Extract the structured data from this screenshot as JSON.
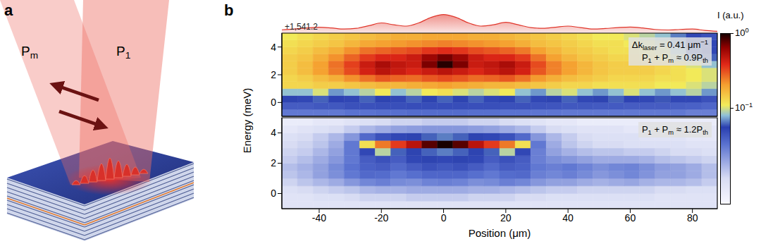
{
  "figure": {
    "panel_labels": [
      "a",
      "b"
    ],
    "beams": [
      [
        {
          "text": "P"
        },
        {
          "text": "m",
          "sub": true
        }
      ],
      [
        {
          "text": "P"
        },
        {
          "text": "1",
          "sub": true
        }
      ]
    ]
  },
  "chart_data": [
    {
      "type": "area",
      "annotation": "+1,541.2",
      "color": "#e0352a",
      "tick_labels": false,
      "xlim": [
        -52,
        88
      ],
      "ylim": [
        0,
        1.1
      ],
      "x": [
        -52,
        -48,
        -44,
        -40,
        -36,
        -32,
        -28,
        -24,
        -20,
        -16,
        -12,
        -8,
        -4,
        0,
        4,
        8,
        12,
        16,
        20,
        24,
        28,
        32,
        36,
        40,
        44,
        48,
        52,
        56,
        60,
        64,
        68,
        72,
        76,
        80,
        84,
        88
      ],
      "values": [
        0.18,
        0.22,
        0.28,
        0.32,
        0.28,
        0.22,
        0.26,
        0.4,
        0.55,
        0.45,
        0.38,
        0.55,
        0.85,
        1.0,
        0.85,
        0.55,
        0.38,
        0.45,
        0.58,
        0.45,
        0.3,
        0.26,
        0.32,
        0.38,
        0.3,
        0.22,
        0.25,
        0.3,
        0.33,
        0.28,
        0.2,
        0.17,
        0.2,
        0.22,
        0.15,
        0.1
      ]
    },
    {
      "type": "heatmap",
      "y_label": "Energy (meV)",
      "tick_labels": "y",
      "xlim": [
        -52,
        88
      ],
      "ylim": [
        -1,
        5
      ],
      "xticks": [
        -40,
        -20,
        0,
        20,
        40,
        60,
        80
      ],
      "yticks": [
        0,
        2,
        4
      ],
      "annotations": [
        [
          {
            "text": "Δk"
          },
          {
            "text": "laser",
            "sub": true
          },
          {
            "text": " = 0.41 μm"
          },
          {
            "text": "−1",
            "sup": true
          }
        ],
        [
          {
            "text": "P"
          },
          {
            "text": "1",
            "sub": true
          },
          {
            "text": " + P"
          },
          {
            "text": "m",
            "sub": true
          },
          {
            "text": " ≈ 0.9P"
          },
          {
            "text": "th",
            "sub": true
          }
        ]
      ],
      "colorbar": {
        "label": "I (a.u.)",
        "range": [
          0.005,
          1
        ],
        "log": true,
        "ticks": [
          {
            "value": 1,
            "label": [
              {
                "text": "10"
              },
              {
                "text": "0",
                "sup": true
              }
            ]
          },
          {
            "value": 0.1,
            "label": [
              {
                "text": "10"
              },
              {
                "text": "−1",
                "sup": true
              }
            ]
          }
        ]
      },
      "x_bins": [
        -52,
        -47,
        -42,
        -37,
        -32,
        -27,
        -22,
        -17,
        -12,
        -7,
        -2,
        3,
        8,
        13,
        18,
        23,
        28,
        33,
        38,
        43,
        48,
        53,
        58,
        63,
        68,
        73,
        78,
        83,
        88
      ],
      "y_bins": [
        -1,
        -0.5,
        0,
        0.5,
        1,
        1.5,
        2,
        2.5,
        3,
        3.5,
        4,
        4.5,
        5
      ],
      "cells": [
        [
          0.03,
          0.03,
          0.03,
          0.03,
          0.032,
          0.032,
          0.033,
          0.033,
          0.034,
          0.034,
          0.034,
          0.034,
          0.033,
          0.033,
          0.032,
          0.032,
          0.031,
          0.031,
          0.03,
          0.03,
          0.03,
          0.03,
          0.03,
          0.03,
          0.03,
          0.03,
          0.028,
          0.028
        ],
        [
          0.04,
          0.04,
          0.042,
          0.042,
          0.045,
          0.045,
          0.046,
          0.046,
          0.047,
          0.047,
          0.047,
          0.047,
          0.046,
          0.046,
          0.045,
          0.045,
          0.044,
          0.043,
          0.042,
          0.042,
          0.041,
          0.041,
          0.04,
          0.04,
          0.04,
          0.039,
          0.038,
          0.036
        ],
        [
          0.055,
          0.05,
          0.06,
          0.052,
          0.05,
          0.06,
          0.055,
          0.05,
          0.06,
          0.055,
          0.06,
          0.055,
          0.06,
          0.05,
          0.055,
          0.06,
          0.05,
          0.055,
          0.06,
          0.05,
          0.055,
          0.06,
          0.052,
          0.05,
          0.058,
          0.05,
          0.05,
          0.045
        ],
        [
          0.08,
          0.08,
          0.1,
          0.07,
          0.08,
          0.09,
          0.11,
          0.08,
          0.09,
          0.11,
          0.12,
          0.1,
          0.09,
          0.1,
          0.11,
          0.08,
          0.07,
          0.09,
          0.1,
          0.08,
          0.07,
          0.08,
          0.1,
          0.08,
          0.07,
          0.08,
          0.09,
          0.07
        ],
        [
          0.13,
          0.13,
          0.14,
          0.14,
          0.15,
          0.16,
          0.17,
          0.17,
          0.18,
          0.19,
          0.2,
          0.19,
          0.18,
          0.17,
          0.17,
          0.16,
          0.15,
          0.14,
          0.13,
          0.13,
          0.12,
          0.12,
          0.12,
          0.12,
          0.11,
          0.11,
          0.1,
          0.09
        ],
        [
          0.13,
          0.14,
          0.16,
          0.18,
          0.22,
          0.26,
          0.3,
          0.28,
          0.27,
          0.3,
          0.32,
          0.3,
          0.27,
          0.28,
          0.3,
          0.26,
          0.21,
          0.18,
          0.16,
          0.15,
          0.14,
          0.13,
          0.13,
          0.13,
          0.12,
          0.12,
          0.11,
          0.1
        ],
        [
          0.14,
          0.16,
          0.2,
          0.25,
          0.32,
          0.42,
          0.5,
          0.45,
          0.4,
          0.45,
          0.5,
          0.45,
          0.4,
          0.45,
          0.5,
          0.42,
          0.3,
          0.24,
          0.2,
          0.17,
          0.15,
          0.14,
          0.14,
          0.14,
          0.13,
          0.12,
          0.11,
          0.1
        ],
        [
          0.14,
          0.16,
          0.2,
          0.26,
          0.34,
          0.45,
          0.55,
          0.48,
          0.45,
          0.7,
          0.95,
          0.7,
          0.45,
          0.48,
          0.55,
          0.45,
          0.32,
          0.24,
          0.2,
          0.17,
          0.15,
          0.14,
          0.14,
          0.14,
          0.13,
          0.12,
          0.1,
          0.08
        ],
        [
          0.14,
          0.15,
          0.18,
          0.22,
          0.28,
          0.35,
          0.4,
          0.4,
          0.45,
          0.6,
          0.72,
          0.6,
          0.45,
          0.4,
          0.4,
          0.35,
          0.26,
          0.2,
          0.17,
          0.15,
          0.14,
          0.13,
          0.13,
          0.12,
          0.11,
          0.09,
          0.07,
          0.06
        ],
        [
          0.13,
          0.14,
          0.16,
          0.18,
          0.22,
          0.26,
          0.28,
          0.3,
          0.32,
          0.36,
          0.38,
          0.36,
          0.32,
          0.3,
          0.28,
          0.25,
          0.2,
          0.17,
          0.15,
          0.14,
          0.13,
          0.12,
          0.12,
          0.11,
          0.1,
          0.08,
          0.06,
          0.05
        ],
        [
          0.12,
          0.13,
          0.14,
          0.15,
          0.17,
          0.19,
          0.2,
          0.21,
          0.22,
          0.23,
          0.24,
          0.23,
          0.22,
          0.21,
          0.2,
          0.18,
          0.16,
          0.15,
          0.14,
          0.13,
          0.12,
          0.12,
          0.11,
          0.1,
          0.09,
          0.07,
          0.055,
          0.05
        ],
        [
          0.11,
          0.12,
          0.13,
          0.14,
          0.15,
          0.16,
          0.17,
          0.18,
          0.18,
          0.19,
          0.19,
          0.19,
          0.18,
          0.18,
          0.17,
          0.16,
          0.15,
          0.14,
          0.13,
          0.12,
          0.11,
          0.11,
          0.1,
          0.09,
          0.08,
          0.065,
          0.05,
          0.045
        ]
      ]
    },
    {
      "type": "heatmap",
      "x_label": "Position (μm)",
      "tick_labels": true,
      "xlim": [
        -52,
        88
      ],
      "ylim": [
        -1,
        5
      ],
      "xticks": [
        -40,
        -20,
        0,
        20,
        40,
        60,
        80
      ],
      "yticks": [
        0,
        2,
        4
      ],
      "annotations": [
        [
          {
            "text": "P"
          },
          {
            "text": "1",
            "sub": true
          },
          {
            "text": " + P"
          },
          {
            "text": "m",
            "sub": true
          },
          {
            "text": " ≈ 1.2P"
          },
          {
            "text": "th",
            "sub": true
          }
        ]
      ],
      "x_bins": [
        -52,
        -47,
        -42,
        -37,
        -32,
        -27,
        -22,
        -17,
        -12,
        -7,
        -2,
        3,
        8,
        13,
        18,
        23,
        28,
        33,
        38,
        43,
        48,
        53,
        58,
        63,
        68,
        73,
        78,
        83,
        88
      ],
      "y_bins": [
        -1,
        -0.5,
        0,
        0.5,
        1,
        1.5,
        2,
        2.5,
        3,
        3.5,
        4,
        4.5,
        5
      ],
      "cells": [
        [
          0.009,
          0.009,
          0.009,
          0.009,
          0.009,
          0.009,
          0.009,
          0.009,
          0.009,
          0.009,
          0.009,
          0.009,
          0.009,
          0.009,
          0.009,
          0.009,
          0.009,
          0.009,
          0.009,
          0.009,
          0.009,
          0.009,
          0.009,
          0.009,
          0.009,
          0.009,
          0.009,
          0.009
        ],
        [
          0.009,
          0.009,
          0.01,
          0.01,
          0.011,
          0.012,
          0.012,
          0.012,
          0.013,
          0.013,
          0.013,
          0.013,
          0.012,
          0.012,
          0.012,
          0.011,
          0.011,
          0.01,
          0.01,
          0.01,
          0.01,
          0.01,
          0.01,
          0.01,
          0.009,
          0.009,
          0.009,
          0.009
        ],
        [
          0.01,
          0.011,
          0.012,
          0.013,
          0.014,
          0.016,
          0.017,
          0.017,
          0.018,
          0.018,
          0.018,
          0.018,
          0.017,
          0.017,
          0.016,
          0.015,
          0.014,
          0.013,
          0.013,
          0.012,
          0.012,
          0.012,
          0.012,
          0.012,
          0.011,
          0.011,
          0.01,
          0.01
        ],
        [
          0.012,
          0.014,
          0.016,
          0.018,
          0.022,
          0.026,
          0.028,
          0.025,
          0.024,
          0.027,
          0.028,
          0.027,
          0.024,
          0.025,
          0.028,
          0.026,
          0.022,
          0.02,
          0.02,
          0.018,
          0.017,
          0.018,
          0.019,
          0.017,
          0.016,
          0.016,
          0.015,
          0.013
        ],
        [
          0.014,
          0.016,
          0.02,
          0.024,
          0.03,
          0.035,
          0.034,
          0.03,
          0.033,
          0.036,
          0.036,
          0.036,
          0.033,
          0.03,
          0.034,
          0.035,
          0.028,
          0.026,
          0.028,
          0.025,
          0.022,
          0.024,
          0.026,
          0.023,
          0.02,
          0.02,
          0.018,
          0.015
        ],
        [
          0.015,
          0.017,
          0.02,
          0.025,
          0.032,
          0.038,
          0.04,
          0.035,
          0.04,
          0.045,
          0.042,
          0.045,
          0.04,
          0.035,
          0.04,
          0.038,
          0.03,
          0.028,
          0.03,
          0.027,
          0.024,
          0.026,
          0.027,
          0.024,
          0.021,
          0.02,
          0.018,
          0.015
        ],
        [
          0.013,
          0.015,
          0.018,
          0.022,
          0.03,
          0.04,
          0.045,
          0.04,
          0.05,
          0.055,
          0.05,
          0.055,
          0.05,
          0.04,
          0.045,
          0.04,
          0.028,
          0.024,
          0.022,
          0.02,
          0.018,
          0.018,
          0.018,
          0.017,
          0.015,
          0.014,
          0.013,
          0.012
        ],
        [
          0.012,
          0.013,
          0.016,
          0.02,
          0.03,
          0.05,
          0.09,
          0.06,
          0.055,
          0.06,
          0.065,
          0.06,
          0.055,
          0.06,
          0.09,
          0.05,
          0.028,
          0.02,
          0.017,
          0.015,
          0.014,
          0.014,
          0.013,
          0.013,
          0.012,
          0.011,
          0.011,
          0.01
        ],
        [
          0.011,
          0.012,
          0.014,
          0.018,
          0.03,
          0.12,
          0.25,
          0.35,
          0.5,
          0.8,
          1,
          0.8,
          0.5,
          0.35,
          0.25,
          0.12,
          0.03,
          0.018,
          0.014,
          0.012,
          0.011,
          0.011,
          0.01,
          0.01,
          0.01,
          0.01,
          0.009,
          0.009
        ],
        [
          0.01,
          0.011,
          0.013,
          0.016,
          0.022,
          0.035,
          0.045,
          0.05,
          0.055,
          0.06,
          0.065,
          0.06,
          0.055,
          0.05,
          0.045,
          0.035,
          0.022,
          0.016,
          0.013,
          0.011,
          0.01,
          0.01,
          0.01,
          0.009,
          0.009,
          0.009,
          0.008,
          0.008
        ],
        [
          0.008,
          0.009,
          0.01,
          0.011,
          0.013,
          0.016,
          0.018,
          0.02,
          0.021,
          0.022,
          0.022,
          0.022,
          0.021,
          0.02,
          0.018,
          0.016,
          0.013,
          0.011,
          0.01,
          0.009,
          0.009,
          0.009,
          0.008,
          0.008,
          0.008,
          0.008,
          0.008,
          0.008
        ],
        [
          0.007,
          0.007,
          0.008,
          0.008,
          0.009,
          0.01,
          0.011,
          0.012,
          0.012,
          0.013,
          0.013,
          0.013,
          0.012,
          0.012,
          0.011,
          0.01,
          0.009,
          0.008,
          0.008,
          0.007,
          0.007,
          0.007,
          0.007,
          0.007,
          0.007,
          0.007,
          0.007,
          0.007
        ]
      ]
    }
  ]
}
